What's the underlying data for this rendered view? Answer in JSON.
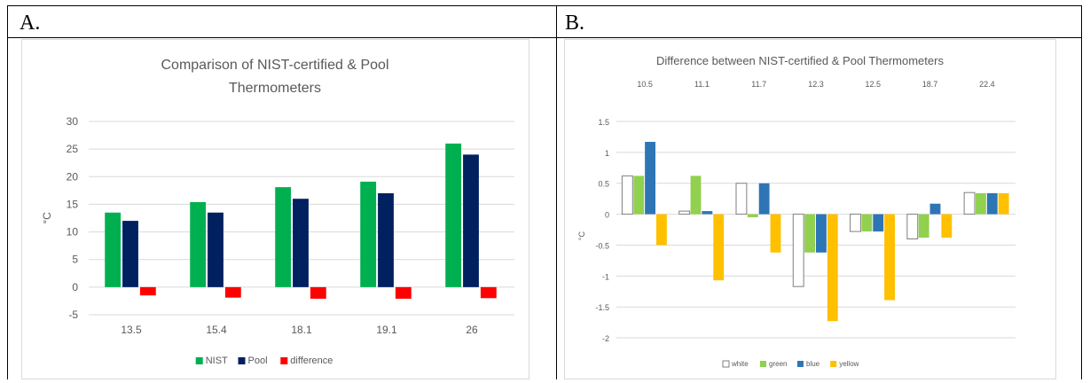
{
  "panels": {
    "a_label": "A.",
    "b_label": "B."
  },
  "chart_data": [
    {
      "type": "bar",
      "title": "Comparison  of NIST-certified & Pool Thermometers",
      "title_lines": [
        "Comparison  of NIST-certified & Pool",
        "Thermometers"
      ],
      "ylabel": "°C",
      "xlabel": "",
      "categories": [
        "13.5",
        "15.4",
        "18.1",
        "19.1",
        "26"
      ],
      "ylim": [
        -5,
        30
      ],
      "yticks": [
        -5,
        0,
        5,
        10,
        15,
        20,
        25,
        30
      ],
      "grid": true,
      "legend": "bottom",
      "series": [
        {
          "name": "NIST",
          "color": "#00b050",
          "values": [
            13.5,
            15.4,
            18.1,
            19.1,
            26
          ]
        },
        {
          "name": "Pool",
          "color": "#002060",
          "values": [
            12,
            13.5,
            16,
            17,
            24
          ]
        },
        {
          "name": "difference",
          "color": "#ff0000",
          "values": [
            -1.5,
            -1.9,
            -2.1,
            -2.1,
            -2
          ]
        }
      ]
    },
    {
      "type": "bar",
      "title": "Difference between NIST-certified & Pool Thermometers",
      "ylabel": "°C",
      "xlabel": "",
      "categories": [
        "10.5",
        "11.1",
        "11.7",
        "12.3",
        "12.5",
        "18.7",
        "22.4"
      ],
      "category_axis": "top",
      "ylim": [
        -2.2,
        1.5
      ],
      "yticks": [
        -2,
        -1.5,
        -1,
        -0.5,
        0,
        0.5,
        1,
        1.5
      ],
      "grid": true,
      "legend": "bottom",
      "series": [
        {
          "name": "white",
          "color": "#ffffff",
          "values": [
            0.62,
            0.05,
            0.5,
            -1.17,
            -0.28,
            -0.4,
            0.35
          ]
        },
        {
          "name": "green",
          "color": "#92d050",
          "values": [
            0.62,
            0.62,
            -0.05,
            -0.62,
            -0.28,
            -0.38,
            0.34
          ]
        },
        {
          "name": "blue",
          "color": "#2e75b6",
          "values": [
            1.17,
            0.05,
            0.5,
            -0.62,
            -0.28,
            0.17,
            0.34
          ]
        },
        {
          "name": "yellow",
          "color": "#ffc000",
          "values": [
            -0.5,
            -1.07,
            -0.62,
            -1.73,
            -1.39,
            -0.38,
            0.34
          ]
        }
      ]
    }
  ]
}
